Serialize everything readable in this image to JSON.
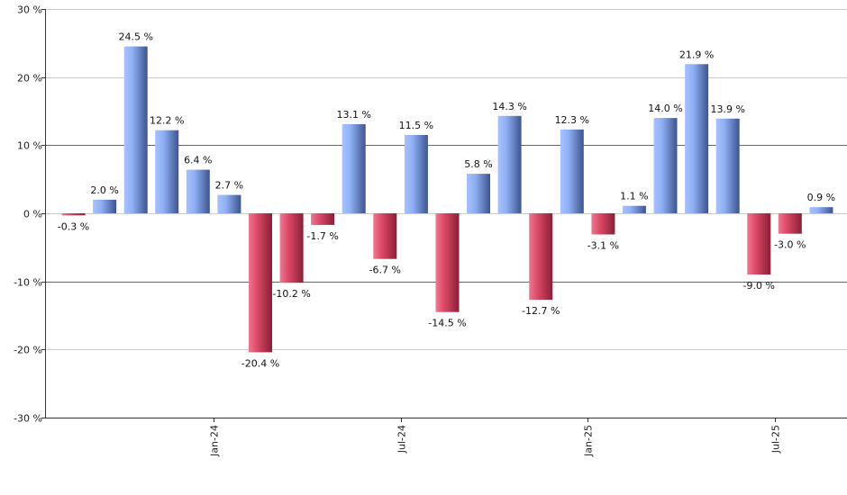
{
  "chart_data": {
    "type": "bar",
    "title": "",
    "xlabel": "",
    "ylabel": "",
    "ylim": [
      -30,
      30
    ],
    "y_ticks": [
      {
        "value": 30,
        "label": "30 %"
      },
      {
        "value": 20,
        "label": "20 %"
      },
      {
        "value": 10,
        "label": "10 %"
      },
      {
        "value": 0,
        "label": "0 %"
      },
      {
        "value": -10,
        "label": "-10 %"
      },
      {
        "value": -20,
        "label": "-20 %"
      },
      {
        "value": -30,
        "label": "-30 %"
      }
    ],
    "x_ticks": [
      {
        "after_bar": 4,
        "label": "Jan-24"
      },
      {
        "after_bar": 10,
        "label": "Jul-24"
      },
      {
        "after_bar": 16,
        "label": "Jan-25"
      },
      {
        "after_bar": 22,
        "label": "Jul-25"
      }
    ],
    "values": [
      -0.3,
      2.0,
      24.5,
      12.2,
      6.4,
      2.7,
      -20.4,
      -10.2,
      -1.7,
      13.1,
      -6.7,
      11.5,
      -14.5,
      5.8,
      14.3,
      -12.7,
      12.3,
      -3.1,
      1.1,
      14.0,
      21.9,
      13.9,
      -9.0,
      -3.0,
      0.9
    ],
    "labels": [
      "-0.3 %",
      "2.0 %",
      "24.5 %",
      "12.2 %",
      "6.4 %",
      "2.7 %",
      "-20.4 %",
      "-10.2 %",
      "-1.7 %",
      "13.1 %",
      "-6.7 %",
      "11.5 %",
      "-14.5 %",
      "5.8 %",
      "14.3 %",
      "-12.7 %",
      "12.3 %",
      "-3.1 %",
      "1.1 %",
      "14.0 %",
      "21.9 %",
      "13.9 %",
      "-9.0 %",
      "-3.0 %",
      "0.9 %"
    ],
    "reference_lines": [
      10,
      -10
    ],
    "grid": true,
    "colors": {
      "positive": "#7f9fe8",
      "positive_dark": "#3a4f8e",
      "negative": "#d84a68",
      "negative_dark": "#8a1f36",
      "reference_line": "#2e8b2e",
      "grid": "#cccccc",
      "axis": "#333333"
    }
  }
}
